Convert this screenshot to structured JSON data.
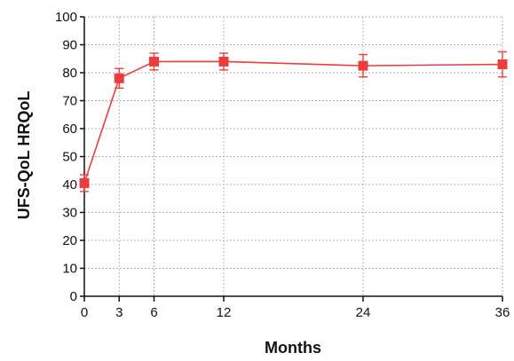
{
  "chart_data": {
    "type": "line",
    "title": "",
    "xlabel": "Months",
    "ylabel": "UFS-QoL HRQoL",
    "x": [
      0,
      3,
      6,
      12,
      24,
      36
    ],
    "x_ticks": [
      "0",
      "3",
      "6",
      "12",
      "24",
      "36"
    ],
    "xlim": [
      0,
      36
    ],
    "ylim": [
      0,
      100
    ],
    "y_ticks": [
      "0",
      "10",
      "20",
      "30",
      "40",
      "50",
      "60",
      "70",
      "80",
      "90",
      "100"
    ],
    "grid": true,
    "series": [
      {
        "values": [
          40.5,
          78,
          84,
          84,
          82.5,
          83
        ],
        "error": [
          3,
          3.5,
          3,
          3,
          4,
          4.5
        ],
        "marker": "square",
        "color": "#ee3b3b"
      }
    ]
  }
}
